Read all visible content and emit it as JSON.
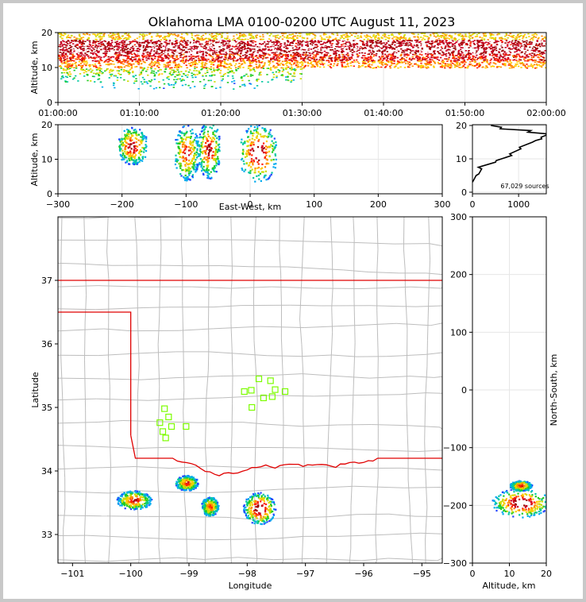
{
  "chart_data": {
    "type": "scatter",
    "title": "Oklahoma LMA 0100-0200 UTC August 11, 2023",
    "panels": {
      "time_height": {
        "ylabel": "Altitude, km",
        "ylim": [
          0,
          20
        ],
        "yticks": [
          "0",
          "10",
          "20"
        ],
        "xticks": [
          "01:00:00",
          "01:10:00",
          "01:20:00",
          "01:30:00",
          "01:40:00",
          "01:50:00",
          "02:00:00"
        ],
        "xrange_minutes": [
          0,
          60
        ],
        "density_rows": [
          {
            "alt": 19,
            "minutes": [
              0,
              60
            ],
            "intensity": 0.5
          },
          {
            "alt": 17,
            "minutes": [
              0,
              60
            ],
            "intensity": 0.95
          },
          {
            "alt": 15,
            "minutes": [
              0,
              60
            ],
            "intensity": 1.0
          },
          {
            "alt": 13,
            "minutes": [
              0,
              60
            ],
            "intensity": 0.8
          },
          {
            "alt": 11,
            "minutes": [
              0,
              60
            ],
            "intensity": 0.6
          },
          {
            "alt": 9,
            "minutes": [
              0,
              30
            ],
            "intensity": 0.35
          },
          {
            "alt": 7,
            "minutes": [
              0,
              30
            ],
            "intensity": 0.2
          },
          {
            "alt": 5,
            "minutes": [
              5,
              25
            ],
            "intensity": 0.1
          }
        ]
      },
      "ew_height": {
        "xlabel": "East-West, km",
        "ylabel": "Altitude, km",
        "xlim": [
          -300,
          300
        ],
        "ylim": [
          0,
          20
        ],
        "xticks": [
          "-300",
          "-200",
          "-100",
          "0",
          "100",
          "200",
          "300"
        ],
        "yticks": [
          "0",
          "10",
          "20"
        ],
        "cells": [
          {
            "x": -185,
            "alt": 14,
            "width_km": 22,
            "height_km": 11,
            "core": 0.9
          },
          {
            "x": -100,
            "alt": 12,
            "width_km": 18,
            "height_km": 16,
            "core": 0.8
          },
          {
            "x": -65,
            "alt": 13,
            "width_km": 16,
            "height_km": 17,
            "core": 0.85
          },
          {
            "x": 12,
            "alt": 12,
            "width_km": 28,
            "height_km": 17,
            "core": 1.0
          }
        ]
      },
      "height_histogram": {
        "label": "67,029 sources",
        "xlim": [
          0,
          1600
        ],
        "ylim": [
          0,
          20
        ],
        "xticks": [
          "0",
          "1000"
        ],
        "yticks": [
          "0",
          "10",
          "20"
        ],
        "profile": [
          {
            "alt": 3,
            "count": 0
          },
          {
            "alt": 5,
            "count": 80
          },
          {
            "alt": 7,
            "count": 200
          },
          {
            "alt": 9,
            "count": 500
          },
          {
            "alt": 11,
            "count": 850
          },
          {
            "alt": 13,
            "count": 1050
          },
          {
            "alt": 15,
            "count": 1300
          },
          {
            "alt": 16,
            "count": 1500
          },
          {
            "alt": 17,
            "count": 1580
          },
          {
            "alt": 18,
            "count": 1200
          },
          {
            "alt": 19,
            "count": 600
          },
          {
            "alt": 20,
            "count": 400
          }
        ]
      },
      "plan_view": {
        "xlabel": "Longitude",
        "ylabel": "Latitude",
        "xlim": [
          -101.25,
          -94.65
        ],
        "ylim": [
          32.55,
          38.0
        ],
        "xticks": [
          -101,
          -100,
          -99,
          -98,
          -97,
          -96,
          -95
        ],
        "xtick_labels": [
          "−101",
          "−100",
          "−99",
          "−98",
          "−97",
          "−96",
          "−95"
        ],
        "yticks": [
          33,
          34,
          35,
          36,
          37
        ],
        "ytick_labels": [
          "33",
          "34",
          "35",
          "36",
          "37"
        ],
        "cells": [
          {
            "lon": -99.95,
            "lat": 33.55,
            "rx": 0.3,
            "ry": 0.15,
            "core": 0.8
          },
          {
            "lon": -99.05,
            "lat": 33.82,
            "rx": 0.2,
            "ry": 0.12,
            "core": 0.75
          },
          {
            "lon": -98.65,
            "lat": 33.45,
            "rx": 0.15,
            "ry": 0.15,
            "core": 0.7
          },
          {
            "lon": -97.8,
            "lat": 33.42,
            "rx": 0.28,
            "ry": 0.25,
            "core": 1.0
          }
        ],
        "stations": [
          [
            -97.8,
            35.45
          ],
          [
            -97.6,
            35.42
          ],
          [
            -98.05,
            35.25
          ],
          [
            -97.93,
            35.27
          ],
          [
            -97.52,
            35.28
          ],
          [
            -97.35,
            35.25
          ],
          [
            -97.57,
            35.17
          ],
          [
            -97.72,
            35.15
          ],
          [
            -97.92,
            35.0
          ],
          [
            -99.42,
            34.98
          ],
          [
            -99.35,
            34.85
          ],
          [
            -99.5,
            34.76
          ],
          [
            -99.3,
            34.7
          ],
          [
            -99.05,
            34.7
          ],
          [
            -99.45,
            34.62
          ],
          [
            -99.4,
            34.52
          ]
        ]
      },
      "ns_height": {
        "xlabel": "Altitude, km",
        "ylabel": "North-South, km",
        "xlim": [
          0,
          20
        ],
        "ylim": [
          -300,
          300
        ],
        "xticks": [
          "0",
          "10",
          "20"
        ],
        "yticks": [
          "300",
          "200",
          "100",
          "0",
          "−100",
          "−200",
          "−300"
        ],
        "cells": [
          {
            "alt": 13,
            "ns": -165,
            "alt_w": 6,
            "ns_h": 18,
            "core": 0.8
          },
          {
            "alt": 13,
            "ns": -195,
            "alt_w": 16,
            "ns_h": 50,
            "core": 1.0
          }
        ]
      }
    },
    "colors": {
      "state_border": "#e00000",
      "county": "#bdbdbd",
      "station": "#7cfc00",
      "grid": "#e6e6e6",
      "frame": "#c8c8c8"
    }
  }
}
